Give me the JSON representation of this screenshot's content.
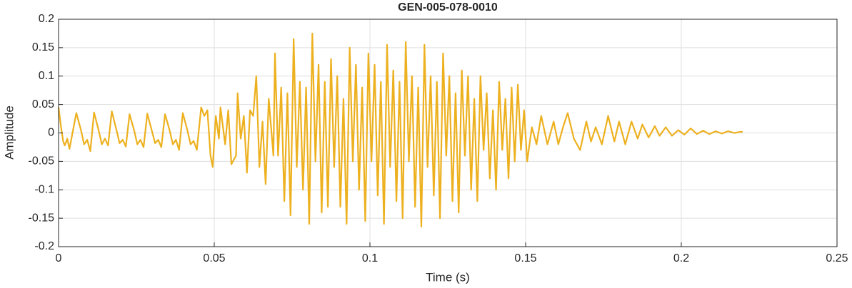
{
  "chart_data": {
    "type": "line",
    "title": "GEN-005-078-0010",
    "x_label": "Time (s)",
    "y_label": "Amplitude",
    "color": "#EDB120",
    "grid": true,
    "xlim": [
      0,
      0.25
    ],
    "xticks": [
      0,
      0.05,
      0.1,
      0.15,
      0.2,
      0.25
    ],
    "ylim": [
      -0.2,
      0.2
    ],
    "yticks": [
      -0.2,
      -0.15,
      -0.1,
      -0.05,
      0,
      0.05,
      0.1,
      0.15,
      0.2
    ],
    "x": [
      0,
      0.0008,
      0.0015,
      0.002,
      0.0028,
      0.0035,
      0.0057,
      0.0072,
      0.0082,
      0.0092,
      0.0102,
      0.0114,
      0.0129,
      0.0139,
      0.0149,
      0.0159,
      0.0171,
      0.0186,
      0.0196,
      0.0206,
      0.0216,
      0.0228,
      0.0243,
      0.0253,
      0.0263,
      0.0273,
      0.0285,
      0.03,
      0.031,
      0.032,
      0.033,
      0.0342,
      0.0357,
      0.0367,
      0.0377,
      0.0387,
      0.0399,
      0.0414,
      0.0424,
      0.0434,
      0.0444,
      0.0458,
      0.0468,
      0.0478,
      0.0488,
      0.0495,
      0.0505,
      0.0515,
      0.052,
      0.0535,
      0.0545,
      0.0555,
      0.057,
      0.0575,
      0.0585,
      0.0595,
      0.0605,
      0.0615,
      0.0625,
      0.0635,
      0.0645,
      0.0655,
      0.0665,
      0.0675,
      0.069,
      0.0695,
      0.0705,
      0.0715,
      0.0725,
      0.0735,
      0.0745,
      0.0755,
      0.0765,
      0.0775,
      0.0785,
      0.0795,
      0.0805,
      0.0815,
      0.0825,
      0.0835,
      0.0845,
      0.0855,
      0.0865,
      0.0875,
      0.0885,
      0.0895,
      0.0905,
      0.0915,
      0.0925,
      0.0935,
      0.0945,
      0.0955,
      0.0965,
      0.0975,
      0.0985,
      0.0995,
      0.1005,
      0.1015,
      0.1025,
      0.1035,
      0.1045,
      0.1055,
      0.1065,
      0.1075,
      0.1085,
      0.1095,
      0.1105,
      0.1115,
      0.1125,
      0.1135,
      0.1145,
      0.1155,
      0.1165,
      0.1175,
      0.1185,
      0.1195,
      0.1205,
      0.1215,
      0.1225,
      0.1235,
      0.1245,
      0.1255,
      0.1265,
      0.1275,
      0.1285,
      0.1295,
      0.1305,
      0.1315,
      0.1325,
      0.1335,
      0.1345,
      0.1355,
      0.1365,
      0.1375,
      0.1385,
      0.1395,
      0.1405,
      0.1415,
      0.1425,
      0.1435,
      0.1445,
      0.1455,
      0.1465,
      0.1475,
      0.1485,
      0.1495,
      0.1505,
      0.152,
      0.1535,
      0.155,
      0.157,
      0.159,
      0.1605,
      0.162,
      0.1635,
      0.1655,
      0.1675,
      0.1695,
      0.171,
      0.1725,
      0.1745,
      0.1765,
      0.1785,
      0.18,
      0.182,
      0.184,
      0.186,
      0.1875,
      0.1895,
      0.1915,
      0.193,
      0.195,
      0.197,
      0.199,
      0.201,
      0.203,
      0.205,
      0.207,
      0.209,
      0.211,
      0.213,
      0.215,
      0.217,
      0.219,
      0.2197
    ],
    "values": [
      0.045,
      0.01,
      -0.015,
      -0.022,
      -0.01,
      -0.028,
      0.035,
      0.005,
      -0.02,
      -0.012,
      -0.032,
      0.036,
      0.004,
      -0.02,
      -0.01,
      -0.022,
      0.038,
      0.005,
      -0.018,
      -0.012,
      -0.024,
      0.033,
      0.004,
      -0.02,
      -0.012,
      -0.025,
      0.034,
      0.003,
      -0.018,
      -0.012,
      -0.025,
      0.033,
      0.004,
      -0.02,
      -0.012,
      -0.03,
      0.035,
      0.004,
      -0.02,
      -0.014,
      -0.03,
      0.045,
      0.03,
      0.04,
      -0.04,
      -0.06,
      0.03,
      -0.01,
      0.045,
      -0.02,
      0.04,
      -0.055,
      -0.04,
      0.07,
      -0.01,
      0.03,
      -0.07,
      0.04,
      0.03,
      0.1,
      -0.06,
      0.02,
      -0.09,
      0.06,
      -0.04,
      0.14,
      -0.04,
      0.08,
      -0.12,
      0.07,
      -0.145,
      0.165,
      -0.06,
      0.09,
      -0.1,
      0.08,
      -0.16,
      0.175,
      -0.05,
      0.12,
      -0.14,
      0.09,
      -0.13,
      0.13,
      -0.06,
      0.1,
      -0.13,
      0.06,
      -0.16,
      0.15,
      -0.05,
      0.12,
      -0.1,
      0.08,
      -0.155,
      0.14,
      -0.05,
      0.12,
      -0.11,
      0.09,
      -0.16,
      0.155,
      -0.06,
      0.11,
      -0.12,
      0.09,
      -0.15,
      0.16,
      -0.05,
      0.1,
      -0.13,
      0.08,
      -0.165,
      0.155,
      -0.06,
      0.1,
      -0.11,
      0.09,
      -0.15,
      0.14,
      -0.04,
      0.1,
      -0.12,
      0.07,
      -0.14,
      0.11,
      -0.04,
      0.1,
      -0.1,
      0.06,
      -0.12,
      0.1,
      -0.03,
      0.07,
      -0.08,
      0.04,
      -0.1,
      0.09,
      -0.03,
      0.06,
      -0.08,
      0.08,
      -0.05,
      0.085,
      -0.03,
      0.04,
      -0.05,
      0.01,
      -0.02,
      0.03,
      -0.02,
      0.02,
      -0.02,
      0.01,
      0.035,
      -0.01,
      -0.03,
      0.02,
      -0.015,
      0.01,
      -0.02,
      0.03,
      -0.015,
      0.02,
      -0.02,
      0.02,
      -0.01,
      0.015,
      -0.008,
      0.012,
      -0.005,
      0.01,
      -0.005,
      0.005,
      -0.003,
      0.008,
      -0.002,
      0.004,
      -0.002,
      0.003,
      -0.001,
      0.003,
      0,
      0.002,
      0.002
    ]
  }
}
